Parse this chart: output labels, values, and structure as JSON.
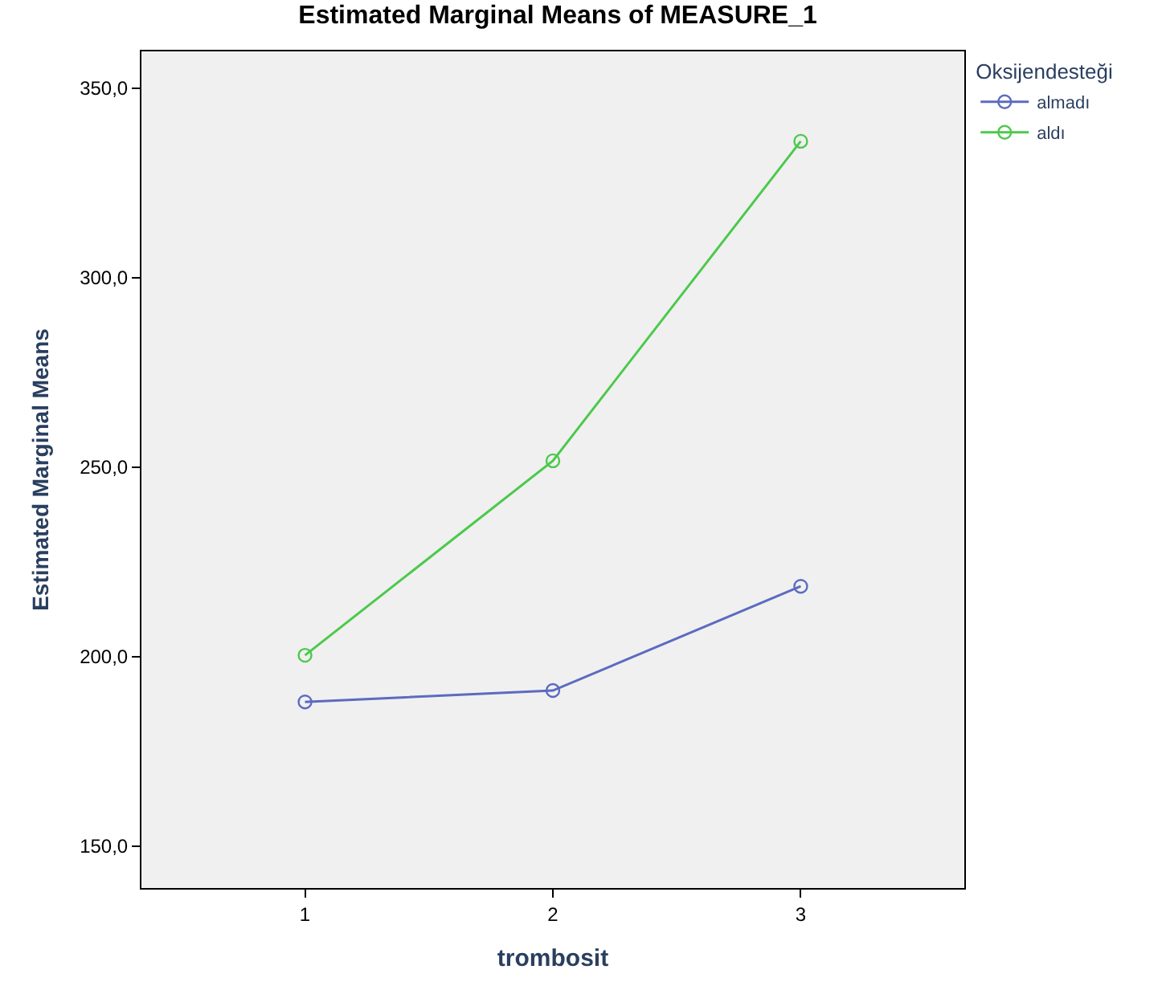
{
  "chart_data": {
    "type": "line",
    "title": "Estimated Marginal Means of MEASURE_1",
    "xlabel": "trombosit",
    "ylabel": "Estimated Marginal Means",
    "legend_title": "Oksijendesteği",
    "x": [
      1,
      2,
      3
    ],
    "xlim": [
      0.34,
      3.66
    ],
    "xticks": [
      1,
      2,
      3
    ],
    "ylim": [
      139,
      359.7
    ],
    "yticks": [
      {
        "value": 150,
        "label": "150,0"
      },
      {
        "value": 200,
        "label": "200,0"
      },
      {
        "value": 250,
        "label": "250,0"
      },
      {
        "value": 300,
        "label": "300,0"
      },
      {
        "value": 350,
        "label": "350,0"
      }
    ],
    "series": [
      {
        "name": "almadı",
        "color": "#5c6bc0",
        "values": [
          188.1,
          191.1,
          218.6
        ]
      },
      {
        "name": "aldı",
        "color": "#4cc94c",
        "values": [
          200.4,
          251.7,
          336.0
        ]
      }
    ],
    "marker": "circle",
    "line_style": "solid",
    "grid": false,
    "legend": "top right"
  }
}
